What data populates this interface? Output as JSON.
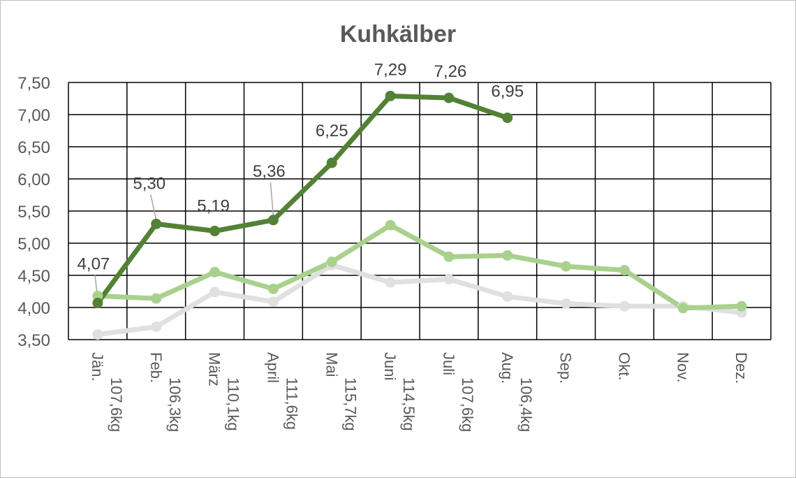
{
  "chart_data": {
    "type": "line",
    "title": "Kuhkälber",
    "categories": [
      [
        "Jän.",
        "107,6kg"
      ],
      [
        "Feb.",
        "106,3kg"
      ],
      [
        "März",
        "110,1kg"
      ],
      [
        "April",
        "111,6kg"
      ],
      [
        "Mai",
        "115,7kg"
      ],
      [
        "Juni",
        "114,5kg"
      ],
      [
        "Juli",
        "107,6kg"
      ],
      [
        "Aug.",
        "106,4kg"
      ],
      [
        "Sep.",
        ""
      ],
      [
        "Okt.",
        ""
      ],
      [
        "Nov.",
        ""
      ],
      [
        "Dez.",
        ""
      ]
    ],
    "ylim": [
      3.5,
      7.5
    ],
    "yticks": [
      "3,50",
      "4,00",
      "4,50",
      "5,00",
      "5,50",
      "6,00",
      "6,50",
      "7,00",
      "7,50"
    ],
    "grid": true,
    "series": [
      {
        "color": "#e0e0e0",
        "values": [
          3.58,
          3.7,
          4.24,
          4.09,
          4.66,
          4.39,
          4.44,
          4.17,
          4.06,
          4.02,
          4.02,
          3.92
        ]
      },
      {
        "color": "#a9d18e",
        "values": [
          4.18,
          4.14,
          4.55,
          4.29,
          4.71,
          5.28,
          4.79,
          4.81,
          4.64,
          4.58,
          3.99,
          4.02
        ]
      },
      {
        "color": "#538135",
        "values": [
          4.07,
          5.3,
          5.19,
          5.36,
          6.25,
          7.29,
          7.26,
          6.95,
          null,
          null,
          null,
          null
        ],
        "data_labels": [
          "4,07",
          "5,30",
          "5,19",
          "5,36",
          "6,25",
          "7,29",
          "7,26",
          "6,95"
        ]
      }
    ]
  }
}
